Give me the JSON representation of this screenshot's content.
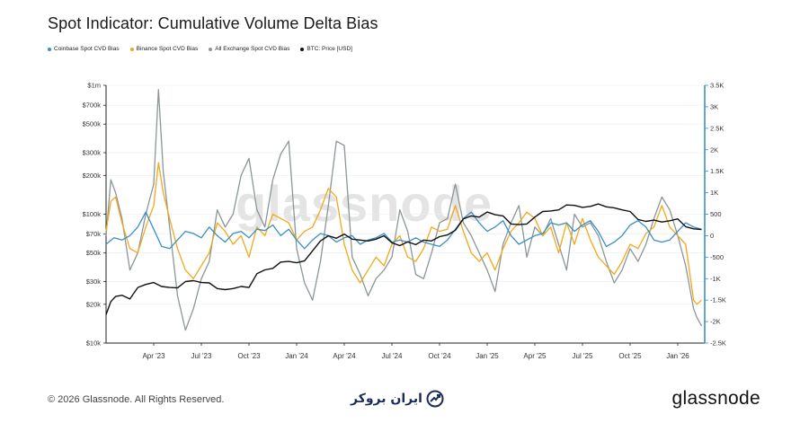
{
  "title": "Spot Indicator: Cumulative Volume Delta Bias",
  "legend": [
    {
      "label": "Coinbase Spot CVD Bias",
      "color": "#3a8fc7"
    },
    {
      "label": "Binance Spot CVD Bias",
      "color": "#f2a81d"
    },
    {
      "label": "All Exchange Spot CVD Bias",
      "color": "#8a9699"
    },
    {
      "label": "BTC: Price [USD]",
      "color": "#111111"
    }
  ],
  "watermark": "glassnode",
  "footer": {
    "copyright": "© 2026 Glassnode. All Rights Reserved.",
    "partner": "ایران بروکر",
    "brand": "glassnode"
  },
  "chart_data": {
    "type": "line",
    "title": "Spot Indicator: Cumulative Volume Delta Bias",
    "x_ticks": [
      "Apr '23",
      "Jul '23",
      "Oct '23",
      "Jan '24",
      "Apr '24",
      "Jul '24",
      "Oct '24",
      "Jan '25",
      "Apr '25",
      "Jul '25",
      "Oct '25",
      "Jan '26"
    ],
    "x_range": [
      "Jan '23",
      "Feb '26"
    ],
    "left_axis": {
      "scale": "log",
      "range": [
        10000,
        1000000
      ],
      "ticks": [
        {
          "value": 1000000,
          "label": "$1m"
        },
        {
          "value": 700000,
          "label": "$700k"
        },
        {
          "value": 500000,
          "label": "$500k"
        },
        {
          "value": 300000,
          "label": "$300k"
        },
        {
          "value": 200000,
          "label": "$200k"
        },
        {
          "value": 100000,
          "label": "$100k"
        },
        {
          "value": 70000,
          "label": "$70k"
        },
        {
          "value": 50000,
          "label": "$50k"
        },
        {
          "value": 30000,
          "label": "$30k"
        },
        {
          "value": 20000,
          "label": "$20k"
        },
        {
          "value": 10000,
          "label": "$10k"
        }
      ]
    },
    "right_axis": {
      "scale": "linear",
      "range": [
        -2500,
        3500
      ],
      "ticks": [
        {
          "value": 3500,
          "label": "3.5K"
        },
        {
          "value": 3000,
          "label": "3K"
        },
        {
          "value": 2500,
          "label": "2.5K"
        },
        {
          "value": 2000,
          "label": "2K"
        },
        {
          "value": 1500,
          "label": "1.5K"
        },
        {
          "value": 1000,
          "label": "1K"
        },
        {
          "value": 500,
          "label": "500"
        },
        {
          "value": 0,
          "label": "0"
        },
        {
          "value": -500,
          "label": "-500"
        },
        {
          "value": -1000,
          "label": "-1K"
        },
        {
          "value": -1500,
          "label": "-1.5K"
        },
        {
          "value": -2000,
          "label": "-2K"
        },
        {
          "value": -2500,
          "label": "-2.5K"
        }
      ]
    },
    "series": [
      {
        "name": "BTC: Price [USD]",
        "axis": "left",
        "color": "#111111",
        "t": [
          0,
          0.3,
          0.6,
          1,
          1.5,
          2,
          2.5,
          3,
          3.5,
          4,
          4.5,
          5,
          5.5,
          6,
          6.5,
          7,
          7.5,
          8,
          8.5,
          9,
          9.5,
          10,
          10.5,
          11,
          11.5,
          12,
          12.5,
          13,
          13.5,
          14,
          14.5,
          15,
          15.5,
          16,
          16.5,
          17,
          17.5,
          18,
          18.5,
          19,
          19.5,
          20,
          20.5,
          21,
          21.5,
          22,
          22.5,
          23,
          23.5,
          24,
          24.5,
          25,
          25.5,
          26,
          26.5,
          27,
          27.5,
          28,
          28.5,
          29,
          29.5,
          30,
          30.5,
          31,
          31.5,
          32,
          32.5,
          33,
          33.5,
          34,
          34.5,
          35,
          35.5,
          36,
          36.5,
          37,
          37.5
        ],
        "values": [
          16600,
          21000,
          23000,
          23500,
          22000,
          27000,
          28500,
          29500,
          27500,
          27000,
          26800,
          30000,
          30500,
          29500,
          29300,
          26500,
          26000,
          26500,
          27500,
          27000,
          34500,
          37000,
          38000,
          42500,
          43000,
          42000,
          43500,
          52000,
          62000,
          68000,
          65000,
          70000,
          64000,
          63000,
          62000,
          64000,
          68000,
          60000,
          57000,
          61000,
          58000,
          63000,
          62000,
          67000,
          69000,
          75000,
          92000,
          97000,
          95000,
          104000,
          99000,
          97000,
          84000,
          83000,
          84000,
          95000,
          105000,
          106000,
          108000,
          118000,
          117000,
          113000,
          115000,
          120000,
          114000,
          112000,
          108000,
          105000,
          91000,
          88000,
          90000,
          87000,
          89000,
          92000,
          80000,
          77000,
          76000
        ]
      },
      {
        "name": "Coinbase Spot CVD Bias",
        "axis": "right",
        "color": "#3a8fc7",
        "t": [
          0,
          0.5,
          1,
          1.5,
          2,
          2.5,
          3,
          3.5,
          4,
          4.5,
          5,
          5.5,
          6,
          6.5,
          7,
          7.5,
          8,
          8.5,
          9,
          9.5,
          10,
          10.5,
          11,
          11.5,
          12,
          12.5,
          13,
          13.5,
          14,
          14.5,
          15,
          15.5,
          16,
          16.5,
          17,
          17.5,
          18,
          18.5,
          19,
          19.5,
          20,
          20.5,
          21,
          21.5,
          22,
          22.5,
          23,
          23.5,
          24,
          24.5,
          25,
          25.5,
          26,
          26.5,
          27,
          27.5,
          28,
          28.5,
          29,
          29.5,
          30,
          30.5,
          31,
          31.5,
          32,
          32.5,
          33,
          33.5,
          34,
          34.5,
          35,
          35.5,
          36,
          36.5,
          37,
          37.5
        ],
        "values": [
          -200,
          -50,
          -100,
          0,
          200,
          550,
          150,
          -250,
          -300,
          -100,
          100,
          50,
          -50,
          200,
          0,
          -150,
          50,
          100,
          -50,
          150,
          120,
          250,
          0,
          150,
          -100,
          -300,
          -100,
          50,
          0,
          -150,
          -50,
          0,
          -200,
          -100,
          -50,
          50,
          -150,
          -100,
          -150,
          -50,
          -150,
          -200,
          -250,
          -100,
          150,
          400,
          550,
          300,
          100,
          200,
          350,
          0,
          -200,
          -100,
          0,
          50,
          300,
          250,
          300,
          100,
          250,
          350,
          100,
          -250,
          -150,
          0,
          250,
          350,
          200,
          -100,
          -150,
          -100,
          100,
          300,
          200,
          150
        ]
      },
      {
        "name": "Binance Spot CVD Bias",
        "axis": "right",
        "color": "#f2a81d",
        "t": [
          0,
          0.3,
          0.6,
          1,
          1.5,
          2,
          2.5,
          3,
          3.3,
          3.6,
          4,
          4.5,
          5,
          5.5,
          6,
          6.5,
          7,
          7.5,
          8,
          8.5,
          9,
          9.5,
          10,
          10.5,
          11,
          11.5,
          12,
          12.5,
          13,
          13.5,
          14,
          14.5,
          15,
          15.5,
          16,
          16.5,
          17,
          17.5,
          18,
          18.5,
          19,
          19.5,
          20,
          20.5,
          21,
          21.5,
          22,
          22.5,
          23,
          23.5,
          24,
          24.5,
          25,
          25.5,
          26,
          26.5,
          27,
          27.5,
          28,
          28.5,
          29,
          29.5,
          30,
          30.5,
          31,
          31.5,
          32,
          32.5,
          33,
          33.5,
          34,
          34.5,
          35,
          35.5,
          36,
          36.5,
          37,
          37.2,
          37.5
        ],
        "values": [
          100,
          800,
          900,
          300,
          -300,
          -400,
          200,
          700,
          1700,
          1000,
          400,
          -300,
          -800,
          -1000,
          -700,
          -400,
          300,
          100,
          -200,
          0,
          -500,
          200,
          0,
          500,
          400,
          300,
          -100,
          100,
          200,
          600,
          1100,
          900,
          -200,
          -800,
          -1100,
          -800,
          -500,
          -700,
          -200,
          0,
          -500,
          -600,
          -300,
          200,
          100,
          150,
          700,
          100,
          -400,
          -600,
          -400,
          -800,
          -300,
          100,
          300,
          550,
          400,
          0,
          200,
          -400,
          300,
          -200,
          400,
          -100,
          -500,
          -700,
          -900,
          -600,
          -200,
          -300,
          50,
          200,
          700,
          200,
          0,
          -200,
          -1500,
          -1600,
          -1500
        ]
      },
      {
        "name": "All Exchange Spot CVD Bias",
        "axis": "right",
        "color": "#8a9699",
        "t": [
          0,
          0.3,
          0.6,
          1,
          1.5,
          2,
          2.5,
          3,
          3.3,
          3.6,
          4,
          4.5,
          5,
          5.5,
          6,
          6.5,
          7,
          7.5,
          8,
          8.5,
          9,
          9.5,
          10,
          10.5,
          11,
          11.5,
          12,
          12.5,
          13,
          13.5,
          14,
          14.5,
          15,
          15.5,
          16,
          16.5,
          17,
          17.5,
          18,
          18.5,
          19,
          19.5,
          20,
          20.5,
          21,
          21.5,
          22,
          22.5,
          23,
          23.5,
          24,
          24.5,
          25,
          25.5,
          26,
          26.5,
          27,
          27.5,
          28,
          28.5,
          29,
          29.5,
          30,
          30.5,
          31,
          31.5,
          32,
          32.5,
          33,
          33.5,
          34,
          34.5,
          35,
          35.5,
          36,
          36.5,
          37,
          37.2,
          37.5
        ],
        "values": [
          0,
          1300,
          1000,
          400,
          -800,
          -400,
          500,
          1200,
          3400,
          1500,
          200,
          -1400,
          -2200,
          -1700,
          -1000,
          -600,
          600,
          200,
          500,
          1400,
          1800,
          600,
          200,
          1300,
          1900,
          2200,
          -300,
          -1100,
          -1500,
          -600,
          700,
          2200,
          2100,
          -500,
          -900,
          -1400,
          -1000,
          -800,
          -500,
          600,
          100,
          -900,
          -1000,
          -400,
          300,
          400,
          1200,
          300,
          0,
          -400,
          -800,
          -1300,
          -200,
          300,
          700,
          -500,
          200,
          0,
          400,
          -200,
          -800,
          500,
          200,
          300,
          0,
          -600,
          -1100,
          -800,
          -300,
          -600,
          -200,
          400,
          900,
          600,
          0,
          -700,
          -1700,
          -1900,
          -2100
        ]
      }
    ]
  }
}
